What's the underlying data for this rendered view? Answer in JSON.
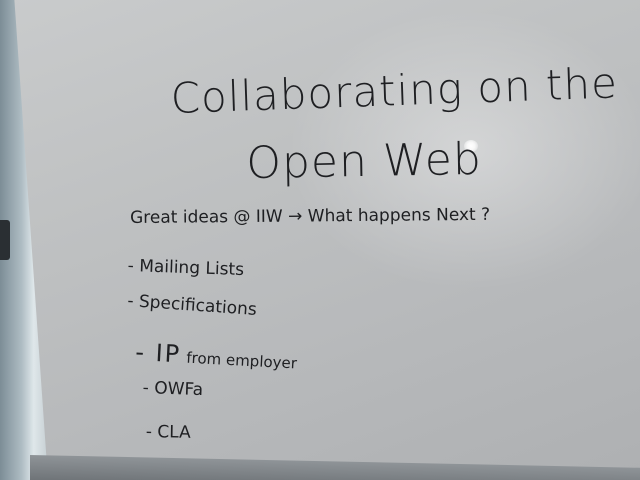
{
  "whiteboard": {
    "title_line_1": "Collaborating on the",
    "title_line_2": "Open Web",
    "subtitle": "Great ideas @ IIW → What happens Next ?",
    "items": [
      "- Mailing Lists",
      "- Specifications",
      {
        "prefix": "- IP",
        "suffix": "from employer"
      },
      "- OWFa",
      "- CLA"
    ]
  },
  "colors": {
    "ink": "#1e1f22",
    "board": "#c0c2c3",
    "frame": "#aebcc3"
  }
}
